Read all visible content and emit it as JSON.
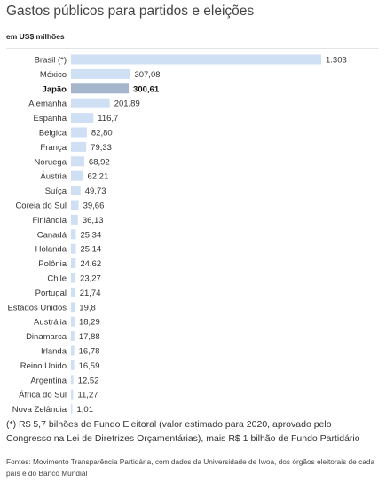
{
  "header": {
    "title": "Gastos públicos para partidos e eleições",
    "unit": "em US$ milhões"
  },
  "chart_data": {
    "type": "bar",
    "orientation": "horizontal",
    "categories": [
      "Brasil (*)",
      "México",
      "Japão",
      "Alemanha",
      "Espanha",
      "Bélgica",
      "França",
      "Noruega",
      "Áustria",
      "Suíça",
      "Coreia do Sul",
      "Finlândia",
      "Canadá",
      "Holanda",
      "Polônia",
      "Chile",
      "Portugal",
      "Estados Unidos",
      "Austrália",
      "Dinamarca",
      "Irlanda",
      "Reino Unido",
      "Argentina",
      "África do Sul",
      "Nova Zelândia"
    ],
    "values": [
      1303,
      307.08,
      300.61,
      201.89,
      116.7,
      82.8,
      79.33,
      68.92,
      62.21,
      49.73,
      39.66,
      36.13,
      25.34,
      25.14,
      24.62,
      23.27,
      21.74,
      19.8,
      18.29,
      17.88,
      16.78,
      16.59,
      12.52,
      11.27,
      1.01
    ],
    "value_labels": [
      "1.303",
      "307,08",
      "300,61",
      "201,89",
      "116,7",
      "82,80",
      "79,33",
      "68,92",
      "62,21",
      "49,73",
      "39,66",
      "36,13",
      "25,34",
      "25,14",
      "24,62",
      "23,27",
      "21,74",
      "19,8",
      "18,29",
      "17,88",
      "16,78",
      "16,59",
      "12,52",
      "11,27",
      "1,01"
    ],
    "highlight": "Japão",
    "title": "Gastos públicos para partidos e eleições",
    "xlabel": "",
    "ylabel": "em US$ milhões",
    "xlim": [
      0,
      1303
    ],
    "grid": false,
    "legend": "none"
  },
  "colors": {
    "bar": "#cfe0f5",
    "bar_highlight": "#a4b5cc",
    "label": "#333333",
    "label_highlight": "#111111"
  },
  "footnote": "(*) R$ 5,7 bilhões de Fundo Eleitoral (valor estimado para 2020, aprovado pelo Congresso na Lei de Diretrizes Orçamentárias), mais R$ 1 bilhão de Fundo Partidário",
  "source": "Fontes: Movimento Transparência Partidária, com dados da Universidade de Iwoa, dos órgãos eleitorais de cada país e do Banco Mundial"
}
